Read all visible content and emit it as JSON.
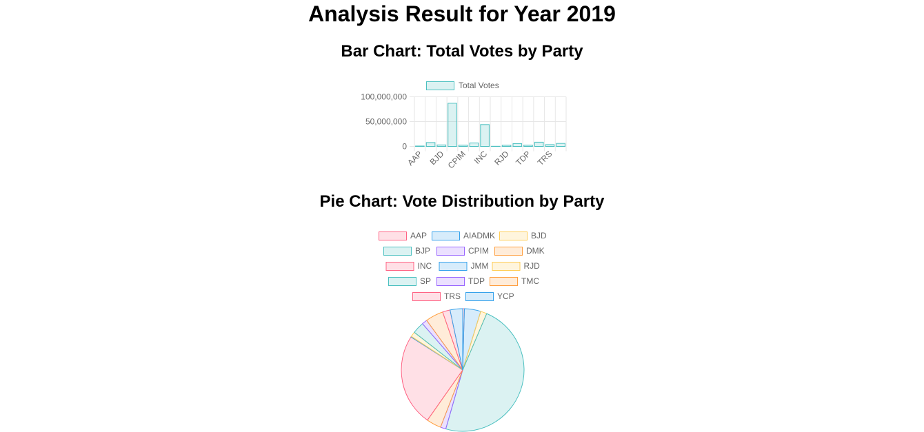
{
  "page": {
    "title": "Analysis Result for Year 2019",
    "bar_title": "Bar Chart: Total Votes by Party",
    "pie_title": "Pie Chart: Vote Distribution by Party"
  },
  "colors": {
    "pink": "#ff6384",
    "blue": "#36a2eb",
    "yellow": "#ffcd56",
    "teal": "#4bc0c0",
    "purple": "#9966ff",
    "orange": "#ff9f40",
    "grid": "#e6e6e6",
    "text": "#666666"
  },
  "chart_data": [
    {
      "type": "bar",
      "title": "Bar Chart: Total Votes by Party",
      "categories": [
        "AAP",
        "AIADMK",
        "BJD",
        "BJP",
        "CPIM",
        "DMK",
        "INC",
        "JMM",
        "RJD",
        "SP",
        "TDP",
        "TMC",
        "TRS",
        "YCP"
      ],
      "category_tick_labels": [
        "AAP",
        "BJD",
        "CPIM",
        "INC",
        "RJD",
        "TDP",
        "TRS"
      ],
      "series": [
        {
          "name": "Total Votes",
          "color": "#4bc0c0",
          "values": [
            800000,
            7800000,
            3000000,
            87000000,
            2600000,
            7000000,
            44000000,
            300000,
            2400000,
            5600000,
            2500000,
            8500000,
            3600000,
            6000000
          ]
        }
      ],
      "ylim": [
        0,
        100000000
      ],
      "yticks": [
        0,
        50000000,
        100000000
      ],
      "ytick_labels": [
        "0",
        "50,000,000",
        "100,000,000"
      ],
      "grid": true,
      "legend": "top"
    },
    {
      "type": "pie",
      "title": "Pie Chart: Vote Distribution by Party",
      "labels": [
        "AAP",
        "AIADMK",
        "BJD",
        "BJP",
        "CPIM",
        "DMK",
        "INC",
        "JMM",
        "RJD",
        "SP",
        "TDP",
        "TMC",
        "TRS",
        "YCP"
      ],
      "values": [
        800000,
        7800000,
        3000000,
        87000000,
        2600000,
        7000000,
        44000000,
        300000,
        2400000,
        5600000,
        2500000,
        8500000,
        3600000,
        6000000
      ],
      "colors": [
        "#ff6384",
        "#36a2eb",
        "#ffcd56",
        "#4bc0c0",
        "#9966ff",
        "#ff9f40",
        "#ff6384",
        "#36a2eb",
        "#ffcd56",
        "#4bc0c0",
        "#9966ff",
        "#ff9f40",
        "#ff6384",
        "#36a2eb"
      ],
      "legend": "top"
    }
  ]
}
